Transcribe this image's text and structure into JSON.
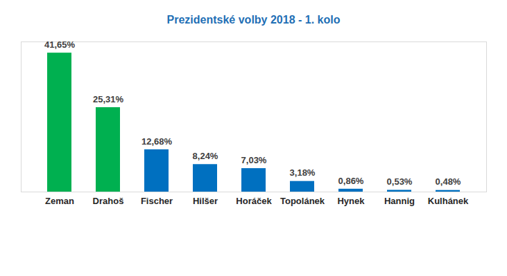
{
  "chart_data": {
    "type": "bar",
    "title": "Prezidentské volby 2018 - 1. kolo",
    "categories": [
      "Zeman",
      "Drahoš",
      "Fischer",
      "Hilšer",
      "Horáček",
      "Topolánek",
      "Hynek",
      "Hannig",
      "Kulhánek"
    ],
    "values": [
      41.65,
      25.31,
      12.68,
      8.24,
      7.03,
      3.18,
      0.86,
      0.53,
      0.48
    ],
    "value_labels": [
      "41,65%",
      "25,31%",
      "12,68%",
      "8,24%",
      "7,03%",
      "3,18%",
      "0,86%",
      "0,53%",
      "0,48%"
    ],
    "colors": [
      "#00b050",
      "#00b050",
      "#0070c0",
      "#0070c0",
      "#0070c0",
      "#0070c0",
      "#0070c0",
      "#0070c0",
      "#0070c0"
    ],
    "ylim": [
      0,
      45
    ],
    "data_labels": true,
    "tick_labels": "x",
    "grid": false
  }
}
